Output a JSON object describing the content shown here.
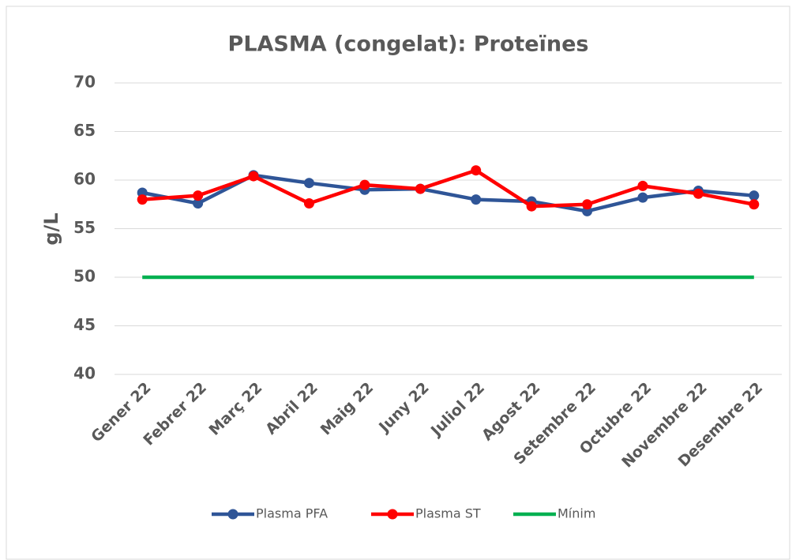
{
  "chart_data": {
    "type": "line",
    "title": "PLASMA (congelat): Proteïnes",
    "y_label": "g/L",
    "categories": [
      "Gener 22",
      "Febrer 22",
      "Març 22",
      "Abril 22",
      "Maig 22",
      "Juny 22",
      "Juliol 22",
      "Agost 22",
      "Setembre 22",
      "Octubre 22",
      "Novembre 22",
      "Desembre 22"
    ],
    "series": [
      {
        "name": "Plasma PFA",
        "color": "#2f5597",
        "marker": true,
        "values": [
          58.7,
          57.6,
          60.5,
          59.7,
          59.0,
          59.1,
          58.0,
          57.8,
          56.8,
          58.2,
          58.9,
          58.4
        ]
      },
      {
        "name": "Plasma ST",
        "color": "#ff0000",
        "marker": true,
        "values": [
          58.0,
          58.4,
          60.4,
          57.6,
          59.5,
          59.1,
          61.0,
          57.3,
          57.5,
          59.4,
          58.6,
          57.5
        ]
      },
      {
        "name": "Mínim",
        "color": "#00b050",
        "marker": false,
        "values": [
          50,
          50,
          50,
          50,
          50,
          50,
          50,
          50,
          50,
          50,
          50,
          50
        ]
      }
    ],
    "ylim": [
      40,
      70
    ],
    "yticks": [
      40,
      45,
      50,
      55,
      60,
      65,
      70
    ],
    "grid": true,
    "legend": "bottom"
  }
}
